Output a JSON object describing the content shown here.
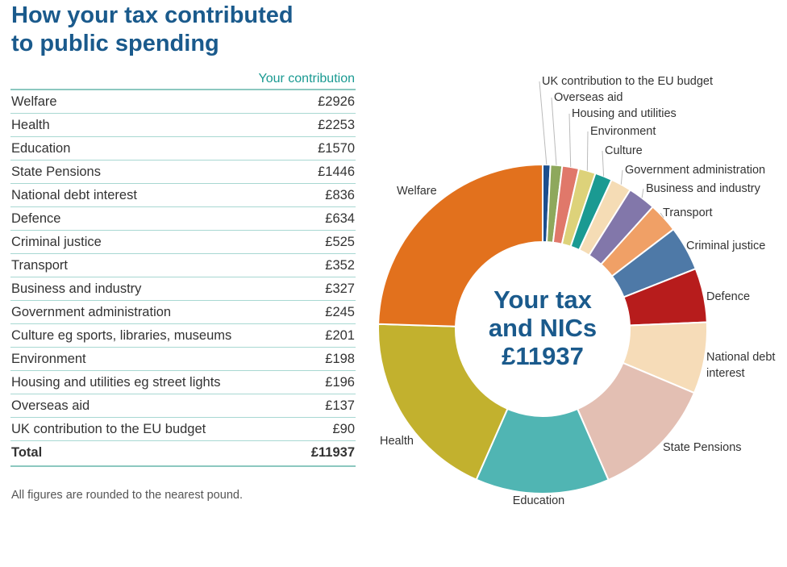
{
  "title_line1": "How your tax contributed",
  "title_line2": "to public spending",
  "table_header": "Your contribution",
  "rows": [
    {
      "name": "Welfare",
      "value": "£2926"
    },
    {
      "name": "Health",
      "value": "£2253"
    },
    {
      "name": "Education",
      "value": "£1570"
    },
    {
      "name": "State Pensions",
      "value": "£1446"
    },
    {
      "name": "National debt interest",
      "value": "£836"
    },
    {
      "name": "Defence",
      "value": "£634"
    },
    {
      "name": "Criminal justice",
      "value": "£525"
    },
    {
      "name": "Transport",
      "value": "£352"
    },
    {
      "name": "Business and industry",
      "value": "£327"
    },
    {
      "name": "Government administration",
      "value": "£245"
    },
    {
      "name": "Culture eg sports, libraries, museums",
      "value": "£201"
    },
    {
      "name": "Environment",
      "value": "£198"
    },
    {
      "name": "Housing and utilities eg street lights",
      "value": "£196"
    },
    {
      "name": "Overseas aid",
      "value": "£137"
    },
    {
      "name": "UK contribution to the EU budget",
      "value": "£90"
    }
  ],
  "total": {
    "name": "Total",
    "value": "£11937"
  },
  "note": "All figures are rounded to the nearest pound.",
  "center_text": [
    "Your tax",
    "and NICs",
    "£11937"
  ],
  "chart_data": {
    "type": "pie",
    "total": 11937,
    "slices": [
      {
        "label": "UK contribution to the EU budget",
        "value": 90,
        "color": "#1c4f8e"
      },
      {
        "label": "Overseas aid",
        "value": 137,
        "color": "#8ea85c"
      },
      {
        "label": "Housing and utilities",
        "value": 196,
        "color": "#e0786a"
      },
      {
        "label": "Environment",
        "value": 198,
        "color": "#ddd27a"
      },
      {
        "label": "Culture",
        "value": 201,
        "color": "#1a9a92"
      },
      {
        "label": "Government administration",
        "value": 245,
        "color": "#f5dcb5"
      },
      {
        "label": "Business and industry",
        "value": 327,
        "color": "#8277aa"
      },
      {
        "label": "Transport",
        "value": 352,
        "color": "#f0a066"
      },
      {
        "label": "Criminal justice",
        "value": 525,
        "color": "#4e79a7"
      },
      {
        "label": "Defence",
        "value": 634,
        "color": "#b71c1c"
      },
      {
        "label": "National debt interest",
        "value": 836,
        "color": "#f6dcb8"
      },
      {
        "label": "State Pensions",
        "value": 1446,
        "color": "#e3bfb3"
      },
      {
        "label": "Education",
        "value": 1570,
        "color": "#50b5b3"
      },
      {
        "label": "Health",
        "value": 2253,
        "color": "#c2b12e"
      },
      {
        "label": "Welfare",
        "value": 2926,
        "color": "#e2711d"
      }
    ]
  }
}
